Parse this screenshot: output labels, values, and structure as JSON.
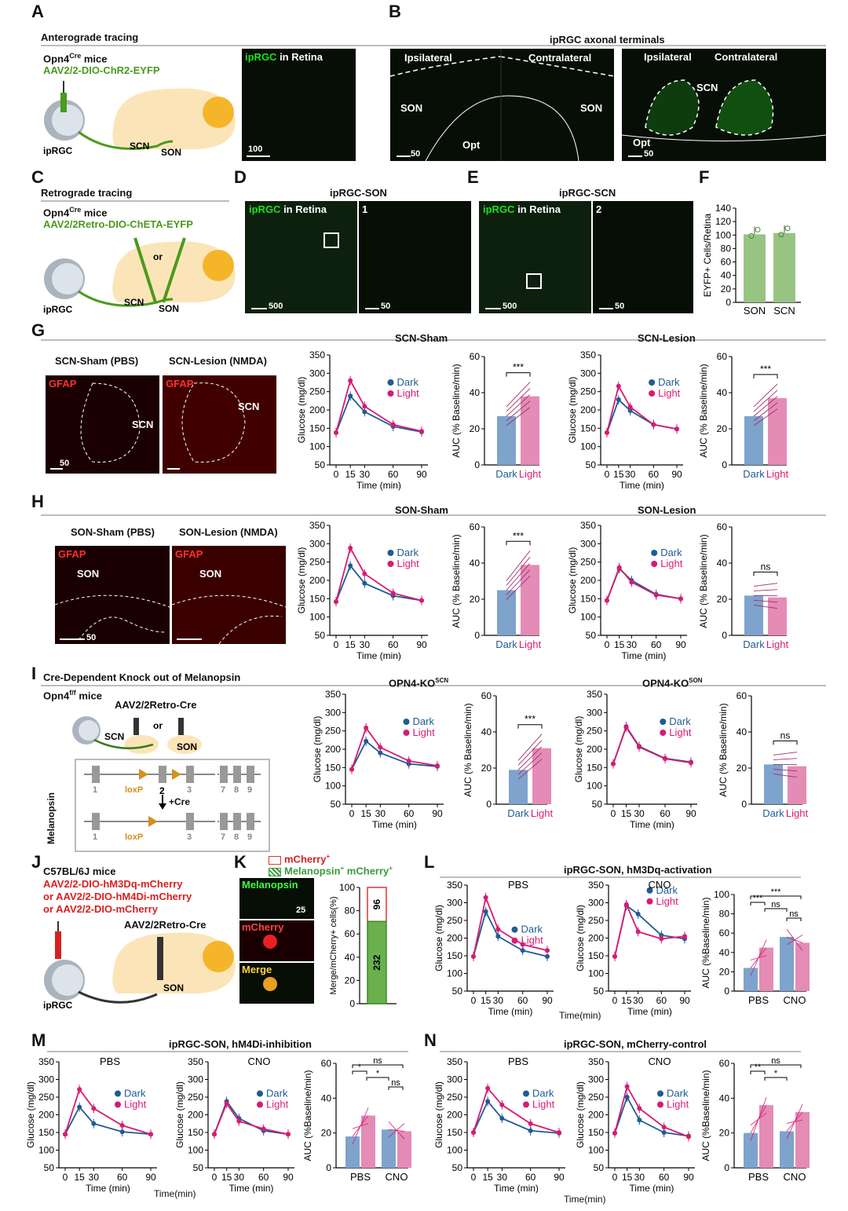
{
  "labels": {
    "A": "A",
    "B": "B",
    "C": "C",
    "D": "D",
    "E": "E",
    "F": "F",
    "G": "G",
    "H": "H",
    "I": "I",
    "J": "J",
    "K": "K",
    "L": "L",
    "M": "M",
    "N": "N"
  },
  "A": {
    "section": "Anterograde tracing",
    "mice": "Opn4",
    "mice_sup": "Cre",
    "mice_tail": " mice",
    "virus": "AAV2/2-DIO-ChR2-EYFP",
    "ipRGC": "ipRGC",
    "SCN": "SCN",
    "SON": "SON",
    "micro_green": "ipRGC",
    "micro_white": " in Retina",
    "scale": "100"
  },
  "B": {
    "title": "ipRGC axonal terminals",
    "ipsi": "Ipsilateral",
    "contra": "Contralateral",
    "SON": "SON",
    "Opt": "Opt",
    "SCN": "SCN",
    "scale": "50"
  },
  "C": {
    "section": "Retrograde tracing",
    "mice": "Opn4",
    "mice_sup": "Cre",
    "mice_tail": " mice",
    "virus": "AAV2/2Retro-DIO-ChETA-EYFP",
    "or": "or",
    "ipRGC": "ipRGC",
    "SCN": "SCN",
    "SON": "SON"
  },
  "D": {
    "title": "ipRGC-SON",
    "micro_green": "ipRGC",
    "micro_white": " in Retina",
    "scale_big": "500",
    "scale_small": "50",
    "box": "1"
  },
  "E": {
    "title": "ipRGC-SCN",
    "micro_green": "ipRGC",
    "micro_white": " in Retina",
    "scale_big": "500",
    "scale_small": "50",
    "box": "2"
  },
  "G": {
    "sham_title": "SCN-Sham (PBS)",
    "lesion_title": "SCN-Lesion (NMDA)",
    "gfap": "GFAP",
    "SCN": "SCN",
    "scale": "50",
    "chart1_title": "SCN-Sham",
    "chart2_title": "SCN-Lesion",
    "sig1": "***",
    "sig2": "***"
  },
  "H": {
    "sham_title": "SON-Sham (PBS)",
    "lesion_title": "SON-Lesion (NMDA)",
    "gfap": "GFAP",
    "SON": "SON",
    "scale": "50",
    "chart1_title": "SON-Sham",
    "chart2_title": "SON-Lesion",
    "sig1": "***",
    "sig2": "ns"
  },
  "I": {
    "section": "Cre-Dependent Knock out of Melanopsin",
    "mice": "Opn4",
    "mice_sup": "f/f",
    "mice_tail": " mice",
    "virus": "AAV2/2Retro-Cre",
    "or": "or",
    "SCN": "SCN",
    "SON": "SON",
    "melanopsin": "Melanopsin",
    "exons_top": [
      "1",
      "2",
      "3",
      "7",
      "8",
      "9"
    ],
    "exons_bottom": [
      "1",
      "3",
      "7",
      "8",
      "9"
    ],
    "loxP": "loxP",
    "cre": "+Cre",
    "chart1_title": "OPN4-KO",
    "chart1_sup": "SCN",
    "chart2_title": "OPN4-KO",
    "chart2_sup": "SON",
    "sig1": "***",
    "sig2": "ns"
  },
  "J": {
    "mice": "C57BL/6J mice",
    "v1": "AAV2/2-DIO-hM3Dq-mCherry",
    "v2": "or AAV2/2-DIO-hM4Di-mCherry",
    "v3": "or AAV2/2-DIO-mCherry",
    "cre": "AAV2/2Retro-Cre",
    "ipRGC": "ipRGC",
    "SON": "SON"
  },
  "K": {
    "legend1": "mCherry",
    "legend1_sup": "+",
    "legend2": "Melanopsin",
    "legend2_sup": "+",
    "legend2b": " mCherry",
    "legend2b_sup": "+",
    "row1": "Melanopsin",
    "row2": "mCherry",
    "row3": "Merge",
    "scale": "25",
    "ylabel": "Merge/mCherry",
    "ylabel_sup": "+",
    "ylabel_tail": " cells(%)",
    "bar_top": "96",
    "bar_bottom": "232"
  },
  "L": {
    "title": "ipRGC-SON, hM3Dq-activation",
    "pbs": "PBS",
    "cno": "CNO",
    "sig": [
      "***",
      "***",
      "ns",
      "ns"
    ],
    "xlabel": "Time(min)"
  },
  "M": {
    "title": "ipRGC-SON, hM4Di-inhibition",
    "pbs": "PBS",
    "cno": "CNO",
    "sig": [
      "ns",
      "*",
      "*",
      "ns"
    ],
    "xlabel": "Time(min)"
  },
  "N": {
    "title": "ipRGC-SON, mCherry-control",
    "pbs": "PBS",
    "cno": "CNO",
    "sig": [
      "ns",
      "**",
      "*"
    ],
    "xlabel": "Time(min)"
  },
  "common": {
    "dark": "Dark",
    "light": "Light",
    "glucose_label": "Glucose (mg/dl)",
    "time_label": "Time (min)",
    "auc_label": "AUC (% Baseline/min)",
    "auc_label2": "AUC (%Baseline/min)",
    "eyfp_label": "EYFP",
    "eyfp_sup": "+",
    "eyfp_tail": " Cells/Retina",
    "dark_color": "#1f5b94",
    "light_color": "#d81b72",
    "dark_bar": "#7ea3cc",
    "light_bar": "#e48bb6",
    "green_bar": "#98c483"
  },
  "chart_data": [
    {
      "id": "F",
      "type": "bar",
      "categories": [
        "SON",
        "SCN"
      ],
      "values": [
        101,
        103
      ],
      "ylim": [
        0,
        140
      ],
      "yticks": [
        0,
        20,
        40,
        60,
        80,
        100,
        120,
        140
      ]
    },
    {
      "id": "G-sham",
      "type": "line",
      "x": [
        0,
        15,
        30,
        60,
        90
      ],
      "xticks": [
        "0",
        "15",
        "30",
        "60",
        "90"
      ],
      "series": [
        {
          "name": "Dark",
          "values": [
            138,
            238,
            195,
            155,
            140
          ]
        },
        {
          "name": "Light",
          "values": [
            138,
            280,
            210,
            160,
            142
          ]
        }
      ],
      "ylim": [
        50,
        350
      ],
      "yticks": [
        50,
        100,
        150,
        200,
        250,
        300,
        350
      ]
    },
    {
      "id": "G-sham-AUC",
      "type": "bar",
      "categories": [
        "Dark",
        "Light"
      ],
      "values": [
        27,
        38
      ],
      "ylim": [
        0,
        60
      ],
      "yticks": [
        0,
        20,
        40,
        60
      ]
    },
    {
      "id": "G-lesion",
      "type": "line",
      "x": [
        0,
        15,
        30,
        60,
        90
      ],
      "xticks": [
        "0",
        "15",
        "30",
        "60",
        "90"
      ],
      "series": [
        {
          "name": "Dark",
          "values": [
            138,
            228,
            198,
            160,
            148
          ]
        },
        {
          "name": "Light",
          "values": [
            138,
            265,
            208,
            160,
            148
          ]
        }
      ],
      "ylim": [
        50,
        350
      ],
      "yticks": [
        50,
        100,
        150,
        200,
        250,
        300,
        350
      ]
    },
    {
      "id": "G-lesion-AUC",
      "type": "bar",
      "categories": [
        "Dark",
        "Light"
      ],
      "values": [
        27,
        37
      ],
      "ylim": [
        0,
        60
      ],
      "yticks": [
        0,
        20,
        40,
        60
      ]
    },
    {
      "id": "H-sham",
      "type": "line",
      "x": [
        0,
        15,
        30,
        60,
        90
      ],
      "xticks": [
        "0",
        "15",
        "30",
        "60",
        "90"
      ],
      "series": [
        {
          "name": "Dark",
          "values": [
            142,
            240,
            192,
            158,
            145
          ]
        },
        {
          "name": "Light",
          "values": [
            142,
            288,
            218,
            165,
            145
          ]
        }
      ],
      "ylim": [
        50,
        350
      ],
      "yticks": [
        50,
        100,
        150,
        200,
        250,
        300,
        350
      ]
    },
    {
      "id": "H-sham-AUC",
      "type": "bar",
      "categories": [
        "Dark",
        "Light"
      ],
      "values": [
        25,
        39
      ],
      "ylim": [
        0,
        60
      ],
      "yticks": [
        0,
        20,
        40,
        60
      ]
    },
    {
      "id": "H-lesion",
      "type": "line",
      "x": [
        0,
        15,
        30,
        60,
        90
      ],
      "xticks": [
        "0",
        "15",
        "30",
        "60",
        "90"
      ],
      "series": [
        {
          "name": "Dark",
          "values": [
            145,
            232,
            200,
            162,
            150
          ]
        },
        {
          "name": "Light",
          "values": [
            145,
            235,
            195,
            160,
            150
          ]
        }
      ],
      "ylim": [
        50,
        350
      ],
      "yticks": [
        50,
        100,
        150,
        200,
        250,
        300,
        350
      ]
    },
    {
      "id": "H-lesion-AUC",
      "type": "bar",
      "categories": [
        "Dark",
        "Light"
      ],
      "values": [
        22,
        21
      ],
      "ylim": [
        0,
        60
      ],
      "yticks": [
        0,
        20,
        40,
        60
      ]
    },
    {
      "id": "I-scn",
      "type": "line",
      "x": [
        0,
        15,
        30,
        60,
        90
      ],
      "xticks": [
        "0",
        "15",
        "30",
        "60",
        "90"
      ],
      "series": [
        {
          "name": "Dark",
          "values": [
            145,
            222,
            190,
            160,
            153
          ]
        },
        {
          "name": "Light",
          "values": [
            145,
            258,
            205,
            168,
            155
          ]
        }
      ],
      "ylim": [
        50,
        350
      ],
      "yticks": [
        50,
        100,
        150,
        200,
        250,
        300,
        350
      ]
    },
    {
      "id": "I-scn-AUC",
      "type": "bar",
      "categories": [
        "Dark",
        "Light"
      ],
      "values": [
        19,
        31
      ],
      "ylim": [
        0,
        60
      ],
      "yticks": [
        0,
        20,
        40,
        60
      ]
    },
    {
      "id": "I-son",
      "type": "line",
      "x": [
        0,
        15,
        30,
        60,
        90
      ],
      "xticks": [
        "0",
        "15",
        "30",
        "60",
        "90"
      ],
      "series": [
        {
          "name": "Dark",
          "values": [
            160,
            262,
            208,
            175,
            165
          ]
        },
        {
          "name": "Light",
          "values": [
            160,
            260,
            206,
            174,
            163
          ]
        }
      ],
      "ylim": [
        50,
        350
      ],
      "yticks": [
        50,
        100,
        150,
        200,
        250,
        300,
        350
      ]
    },
    {
      "id": "I-son-AUC",
      "type": "bar",
      "categories": [
        "Dark",
        "Light"
      ],
      "values": [
        22,
        21
      ],
      "ylim": [
        0,
        60
      ],
      "yticks": [
        0,
        20,
        40,
        60
      ]
    },
    {
      "id": "K",
      "type": "bar",
      "categories": [
        "Merge/mCherry"
      ],
      "values": [
        70.7
      ],
      "ylim": [
        0,
        100
      ],
      "yticks": [
        0,
        20,
        40,
        60,
        80,
        100
      ]
    },
    {
      "id": "L-pbs",
      "type": "line",
      "x": [
        0,
        15,
        30,
        60,
        90
      ],
      "xticks": [
        "0",
        "15",
        "30",
        "60",
        "90"
      ],
      "series": [
        {
          "name": "Dark",
          "values": [
            148,
            275,
            205,
            165,
            148
          ]
        },
        {
          "name": "Light",
          "values": [
            148,
            315,
            225,
            182,
            165
          ]
        }
      ],
      "ylim": [
        50,
        350
      ],
      "yticks": [
        50,
        100,
        150,
        200,
        250,
        300,
        350
      ]
    },
    {
      "id": "L-cno",
      "type": "line",
      "x": [
        0,
        15,
        30,
        60,
        90
      ],
      "xticks": [
        "0",
        "15",
        "30",
        "60",
        "90"
      ],
      "series": [
        {
          "name": "Dark",
          "values": [
            148,
            292,
            268,
            208,
            198
          ]
        },
        {
          "name": "Light",
          "values": [
            148,
            295,
            218,
            198,
            205
          ]
        }
      ],
      "ylim": [
        50,
        350
      ],
      "yticks": [
        50,
        100,
        150,
        200,
        250,
        300,
        350
      ]
    },
    {
      "id": "L-AUC",
      "type": "bar",
      "categories": [
        "PBS",
        "CNO"
      ],
      "series": [
        {
          "name": "Dark",
          "values": [
            24,
            56
          ]
        },
        {
          "name": "Light",
          "values": [
            45,
            50
          ]
        }
      ],
      "ylim": [
        0,
        100
      ],
      "yticks": [
        0,
        20,
        40,
        60,
        80,
        100
      ]
    },
    {
      "id": "M-pbs",
      "type": "line",
      "x": [
        0,
        15,
        30,
        60,
        90
      ],
      "xticks": [
        "0",
        "15",
        "30",
        "60",
        "90"
      ],
      "series": [
        {
          "name": "Dark",
          "values": [
            145,
            222,
            175,
            152,
            145
          ]
        },
        {
          "name": "Light",
          "values": [
            145,
            272,
            218,
            170,
            145
          ]
        }
      ],
      "ylim": [
        50,
        350
      ],
      "yticks": [
        50,
        100,
        150,
        200,
        250,
        300,
        350
      ]
    },
    {
      "id": "M-cno",
      "type": "line",
      "x": [
        0,
        15,
        30,
        60,
        90
      ],
      "xticks": [
        "0",
        "15",
        "30",
        "60",
        "90"
      ],
      "series": [
        {
          "name": "Dark",
          "values": [
            145,
            238,
            190,
            155,
            145
          ]
        },
        {
          "name": "Light",
          "values": [
            145,
            232,
            182,
            160,
            145
          ]
        }
      ],
      "ylim": [
        50,
        350
      ],
      "yticks": [
        50,
        100,
        150,
        200,
        250,
        300,
        350
      ]
    },
    {
      "id": "M-AUC",
      "type": "bar",
      "categories": [
        "PBS",
        "CNO"
      ],
      "series": [
        {
          "name": "Dark",
          "values": [
            18,
            22
          ]
        },
        {
          "name": "Light",
          "values": [
            30,
            21
          ]
        }
      ],
      "ylim": [
        0,
        60
      ],
      "yticks": [
        0,
        20,
        40,
        60
      ]
    },
    {
      "id": "N-pbs",
      "type": "line",
      "x": [
        0,
        15,
        30,
        60,
        90
      ],
      "xticks": [
        "0",
        "15",
        "30",
        "60",
        "90"
      ],
      "series": [
        {
          "name": "Dark",
          "values": [
            150,
            238,
            190,
            155,
            148
          ]
        },
        {
          "name": "Light",
          "values": [
            150,
            275,
            228,
            175,
            150
          ]
        }
      ],
      "ylim": [
        50,
        350
      ],
      "yticks": [
        50,
        100,
        150,
        200,
        250,
        300,
        350
      ]
    },
    {
      "id": "N-cno",
      "type": "line",
      "x": [
        0,
        15,
        30,
        60,
        90
      ],
      "xticks": [
        "0",
        "15",
        "30",
        "60",
        "90"
      ],
      "series": [
        {
          "name": "Dark",
          "values": [
            148,
            250,
            185,
            150,
            140
          ]
        },
        {
          "name": "Light",
          "values": [
            148,
            280,
            218,
            165,
            138
          ]
        }
      ],
      "ylim": [
        50,
        350
      ],
      "yticks": [
        50,
        100,
        150,
        200,
        250,
        300,
        350
      ]
    },
    {
      "id": "N-AUC",
      "type": "bar",
      "categories": [
        "PBS",
        "CNO"
      ],
      "series": [
        {
          "name": "Dark",
          "values": [
            20,
            21
          ]
        },
        {
          "name": "Light",
          "values": [
            36,
            32
          ]
        }
      ],
      "ylim": [
        0,
        60
      ],
      "yticks": [
        0,
        20,
        40,
        60
      ]
    }
  ]
}
